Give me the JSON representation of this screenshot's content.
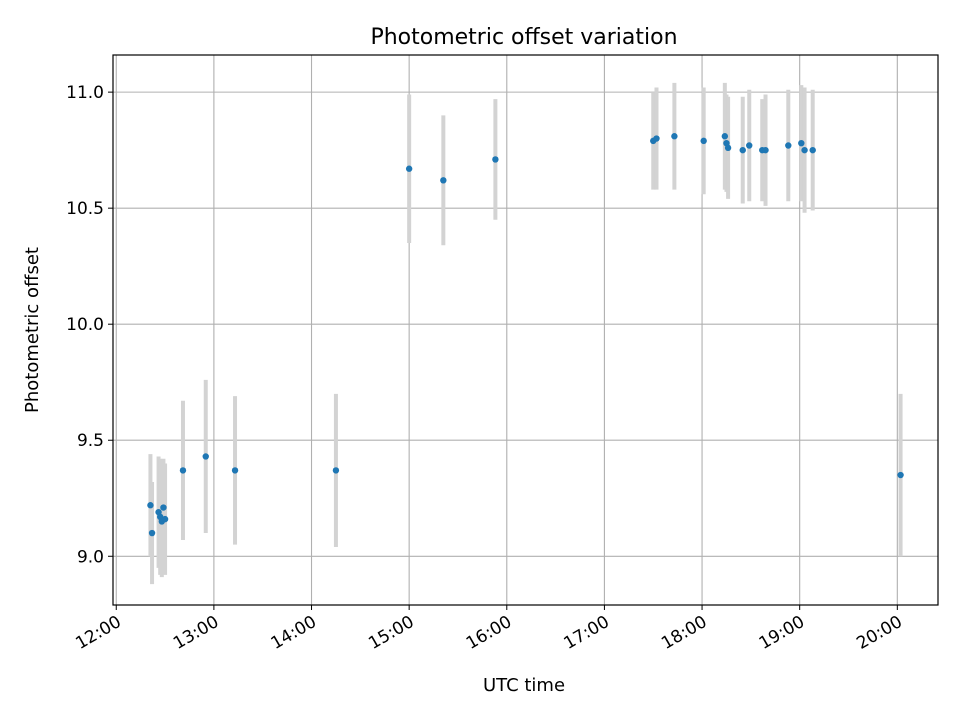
{
  "chart_data": {
    "type": "scatter",
    "title": "Photometric offset variation",
    "xlabel": "UTC time",
    "ylabel": "Photometric offset",
    "grid": true,
    "x_ticks": [
      "12:00",
      "13:00",
      "14:00",
      "15:00",
      "16:00",
      "17:00",
      "18:00",
      "19:00",
      "20:00"
    ],
    "y_ticks": [
      "9.0",
      "9.5",
      "10.0",
      "10.5",
      "11.0"
    ],
    "xlim": [
      "11:58",
      "20:25"
    ],
    "ylim": [
      8.79,
      11.16
    ],
    "point_color": "#1f77b4",
    "errorbar_color": "#d3d3d3",
    "points": [
      {
        "x": "12:21",
        "y": 9.22,
        "err": 0.22
      },
      {
        "x": "12:22",
        "y": 9.1,
        "err": 0.22
      },
      {
        "x": "12:26",
        "y": 9.19,
        "err": 0.24
      },
      {
        "x": "12:27",
        "y": 9.17,
        "err": 0.25
      },
      {
        "x": "12:28",
        "y": 9.15,
        "err": 0.24
      },
      {
        "x": "12:29",
        "y": 9.21,
        "err": 0.21
      },
      {
        "x": "12:30",
        "y": 9.16,
        "err": 0.24
      },
      {
        "x": "12:41",
        "y": 9.37,
        "err": 0.3
      },
      {
        "x": "12:55",
        "y": 9.43,
        "err": 0.33
      },
      {
        "x": "13:13",
        "y": 9.37,
        "err": 0.32
      },
      {
        "x": "14:15",
        "y": 9.37,
        "err": 0.33
      },
      {
        "x": "15:00",
        "y": 10.67,
        "err": 0.32
      },
      {
        "x": "15:21",
        "y": 10.62,
        "err": 0.28
      },
      {
        "x": "15:53",
        "y": 10.71,
        "err": 0.26
      },
      {
        "x": "17:30",
        "y": 10.79,
        "err": 0.21
      },
      {
        "x": "17:32",
        "y": 10.8,
        "err": 0.22
      },
      {
        "x": "17:43",
        "y": 10.81,
        "err": 0.23
      },
      {
        "x": "18:01",
        "y": 10.79,
        "err": 0.23
      },
      {
        "x": "18:14",
        "y": 10.81,
        "err": 0.23
      },
      {
        "x": "18:15",
        "y": 10.78,
        "err": 0.21
      },
      {
        "x": "18:16",
        "y": 10.76,
        "err": 0.22
      },
      {
        "x": "18:25",
        "y": 10.75,
        "err": 0.23
      },
      {
        "x": "18:29",
        "y": 10.77,
        "err": 0.24
      },
      {
        "x": "18:37",
        "y": 10.75,
        "err": 0.22
      },
      {
        "x": "18:39",
        "y": 10.75,
        "err": 0.24
      },
      {
        "x": "18:53",
        "y": 10.77,
        "err": 0.24
      },
      {
        "x": "19:01",
        "y": 10.78,
        "err": 0.25
      },
      {
        "x": "19:03",
        "y": 10.75,
        "err": 0.27
      },
      {
        "x": "19:08",
        "y": 10.75,
        "err": 0.26
      },
      {
        "x": "20:02",
        "y": 9.35,
        "err": 0.35
      }
    ]
  }
}
